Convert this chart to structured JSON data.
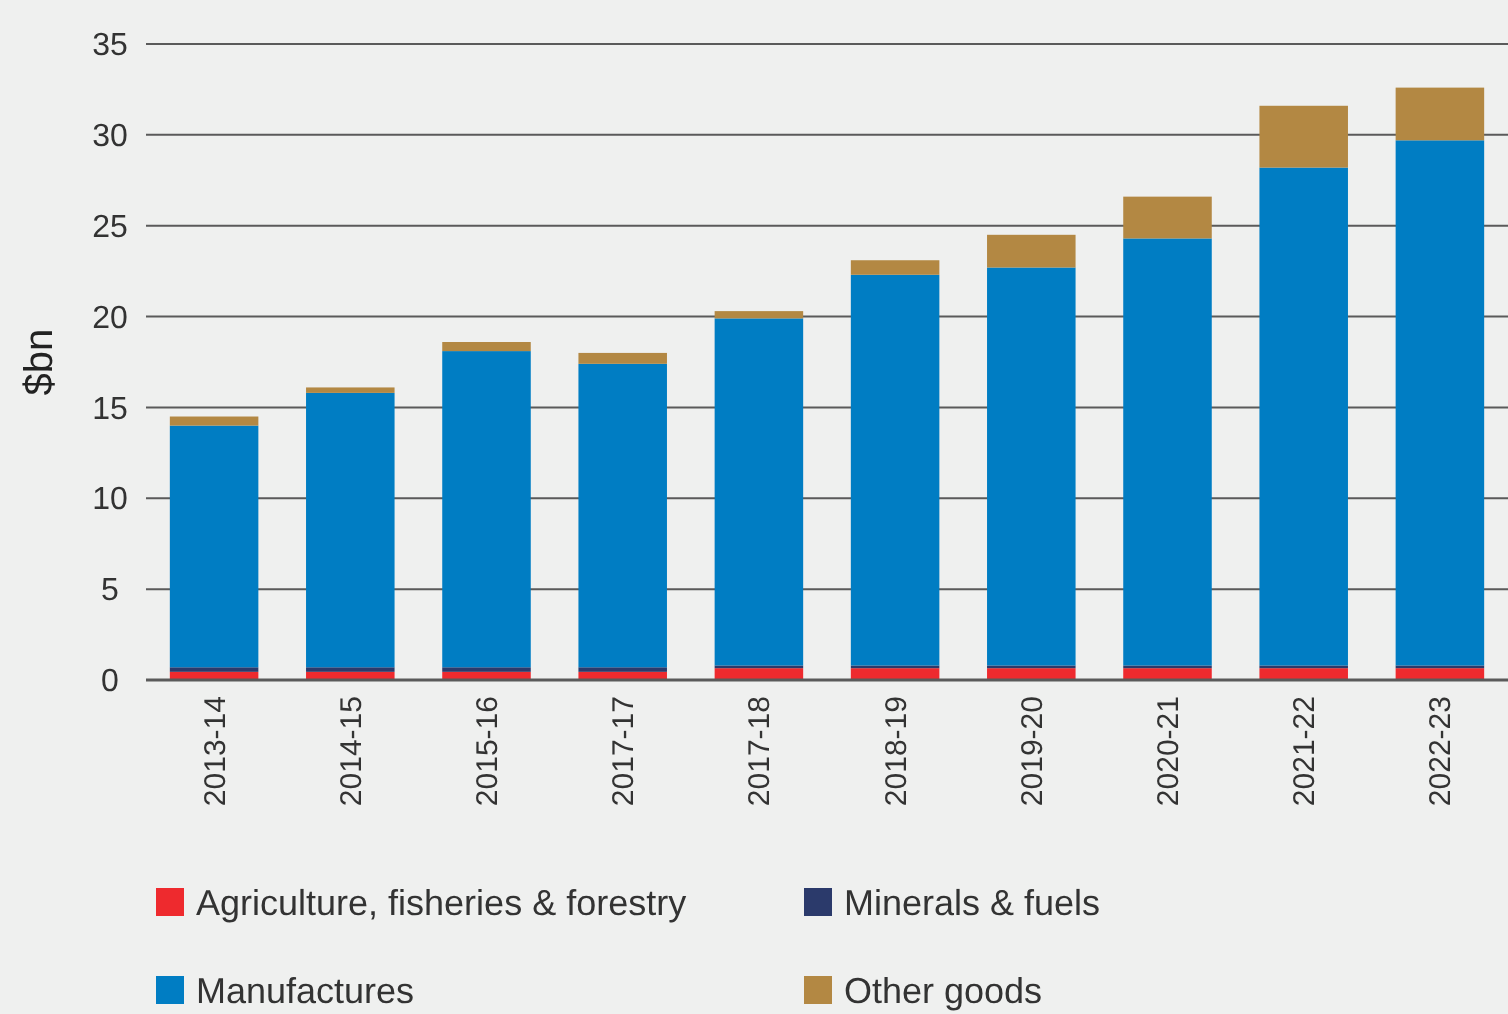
{
  "chart_data": {
    "type": "bar",
    "stacked": true,
    "ylabel": "$bn",
    "categories": [
      "2013-14",
      "2014-15",
      "2015-16",
      "2017-17",
      "2017-18",
      "2018-19",
      "2019-20",
      "2020-21",
      "2021-22",
      "2022-23"
    ],
    "series": [
      {
        "name": "Agriculture, fisheries & forestry",
        "color": "#ee2a2e",
        "values": [
          0.45,
          0.45,
          0.45,
          0.45,
          0.65,
          0.65,
          0.65,
          0.65,
          0.65,
          0.65
        ]
      },
      {
        "name": "Minerals & fuels",
        "color": "#2b3a6b",
        "values": [
          0.25,
          0.25,
          0.25,
          0.25,
          0.15,
          0.15,
          0.15,
          0.15,
          0.15,
          0.15
        ]
      },
      {
        "name": "Manufactures",
        "color": "#007dc3",
        "values": [
          13.3,
          15.1,
          17.4,
          16.7,
          19.1,
          21.5,
          21.9,
          23.5,
          27.4,
          28.9
        ]
      },
      {
        "name": "Other goods",
        "color": "#b38843",
        "values": [
          0.5,
          0.3,
          0.5,
          0.6,
          0.4,
          0.8,
          1.8,
          2.3,
          3.4,
          2.9
        ]
      }
    ],
    "ylim": [
      0,
      35
    ],
    "yticks": [
      0,
      5,
      10,
      15,
      20,
      25,
      30,
      35
    ],
    "grid": "y",
    "legend": "bottom"
  }
}
